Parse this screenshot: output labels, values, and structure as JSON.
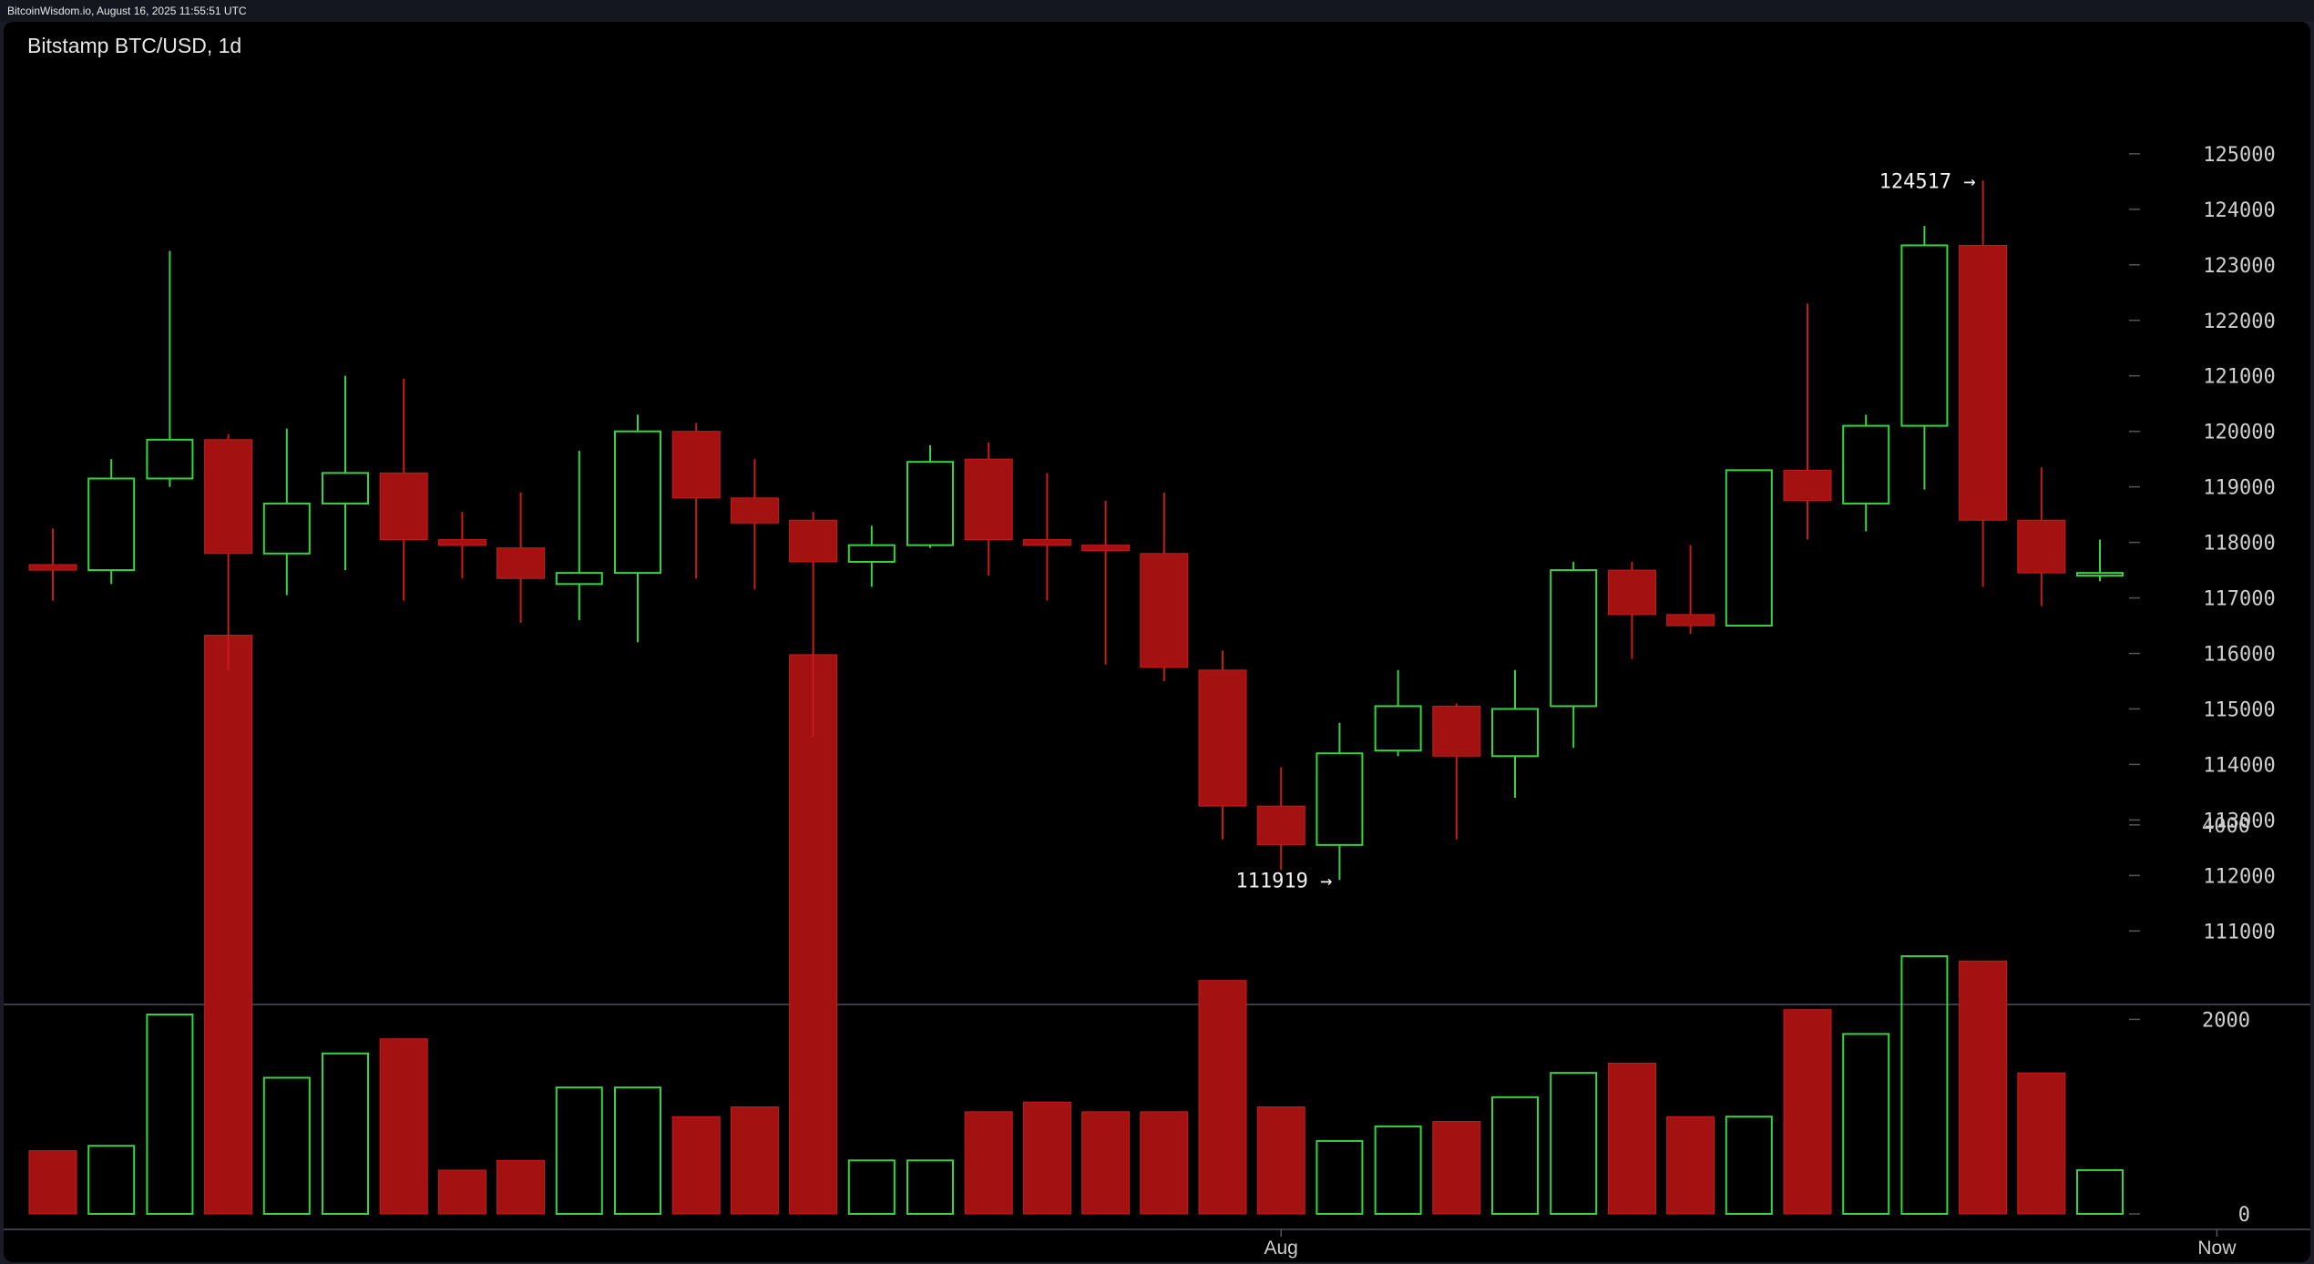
{
  "header": {
    "status_text": "BitcoinWisdom.io, August 16, 2025 11:55:51 UTC"
  },
  "chart": {
    "title": "Bitstamp BTC/USD, 1d"
  },
  "colors": {
    "up": "#36d43e",
    "down": "#a31111",
    "down_wick": "#c71c1c",
    "background": "#000000",
    "axis_text": "#cfcfcf",
    "tick": "#555555",
    "separator": "#3a3d47"
  },
  "chart_data": {
    "type": "candlestick",
    "title": "Bitstamp BTC/USD, 1d",
    "price_axis": {
      "ylim": [
        110300,
        125900
      ],
      "ticks": [
        111000,
        112000,
        113000,
        114000,
        115000,
        116000,
        117000,
        118000,
        119000,
        120000,
        121000,
        122000,
        123000,
        124000,
        125000
      ]
    },
    "volume_axis": {
      "ylim": [
        0,
        6000
      ],
      "ticks": [
        0,
        2000,
        4000
      ]
    },
    "x_labels": [
      {
        "index": 21,
        "label": "Aug"
      },
      {
        "index": 37,
        "label": "Now"
      }
    ],
    "annotations": [
      {
        "text": "124517 →",
        "index": 33,
        "value": 124517,
        "anchor": "high"
      },
      {
        "text": "111919 →",
        "index": 22,
        "value": 111919,
        "anchor": "low"
      }
    ],
    "candles": [
      {
        "o": 117600,
        "h": 118250,
        "l": 116950,
        "c": 117500,
        "v": 650
      },
      {
        "o": 117500,
        "h": 119500,
        "l": 117250,
        "c": 119150,
        "v": 700
      },
      {
        "o": 119150,
        "h": 123250,
        "l": 119000,
        "c": 119850,
        "v": 2050
      },
      {
        "o": 119850,
        "h": 119950,
        "l": 115700,
        "c": 117800,
        "v": 5950
      },
      {
        "o": 117800,
        "h": 120050,
        "l": 117050,
        "c": 118700,
        "v": 1400
      },
      {
        "o": 118700,
        "h": 121000,
        "l": 117500,
        "c": 119250,
        "v": 1650
      },
      {
        "o": 119250,
        "h": 120950,
        "l": 116950,
        "c": 118050,
        "v": 1800
      },
      {
        "o": 118050,
        "h": 118550,
        "l": 117350,
        "c": 117950,
        "v": 450
      },
      {
        "o": 117900,
        "h": 118900,
        "l": 116550,
        "c": 117350,
        "v": 550
      },
      {
        "o": 117250,
        "h": 119650,
        "l": 116600,
        "c": 117450,
        "v": 1300
      },
      {
        "o": 117450,
        "h": 120300,
        "l": 116200,
        "c": 120000,
        "v": 1300
      },
      {
        "o": 120000,
        "h": 120150,
        "l": 117350,
        "c": 118800,
        "v": 1000
      },
      {
        "o": 118800,
        "h": 119500,
        "l": 117150,
        "c": 118350,
        "v": 1100
      },
      {
        "o": 118400,
        "h": 118550,
        "l": 114500,
        "c": 117650,
        "v": 5750
      },
      {
        "o": 117650,
        "h": 118300,
        "l": 117200,
        "c": 117950,
        "v": 550
      },
      {
        "o": 117950,
        "h": 119750,
        "l": 117900,
        "c": 119450,
        "v": 550
      },
      {
        "o": 119500,
        "h": 119800,
        "l": 117400,
        "c": 118050,
        "v": 1050
      },
      {
        "o": 118050,
        "h": 119250,
        "l": 116950,
        "c": 117950,
        "v": 1150
      },
      {
        "o": 117950,
        "h": 118750,
        "l": 115800,
        "c": 117850,
        "v": 1050
      },
      {
        "o": 117800,
        "h": 118900,
        "l": 115500,
        "c": 115750,
        "v": 1050
      },
      {
        "o": 115700,
        "h": 116050,
        "l": 112650,
        "c": 113250,
        "v": 2400
      },
      {
        "o": 113250,
        "h": 113950,
        "l": 112100,
        "c": 112550,
        "v": 1100
      },
      {
        "o": 112550,
        "h": 114750,
        "l": 111919,
        "c": 114200,
        "v": 750
      },
      {
        "o": 114250,
        "h": 115700,
        "l": 114150,
        "c": 115050,
        "v": 900
      },
      {
        "o": 115050,
        "h": 115100,
        "l": 112650,
        "c": 114150,
        "v": 950
      },
      {
        "o": 114150,
        "h": 115700,
        "l": 113400,
        "c": 115000,
        "v": 1200
      },
      {
        "o": 115050,
        "h": 117650,
        "l": 114300,
        "c": 117500,
        "v": 1450
      },
      {
        "o": 117500,
        "h": 117650,
        "l": 115900,
        "c": 116700,
        "v": 1550
      },
      {
        "o": 116700,
        "h": 117950,
        "l": 116350,
        "c": 116500,
        "v": 1000
      },
      {
        "o": 116500,
        "h": 119300,
        "l": 116500,
        "c": 119300,
        "v": 1000
      },
      {
        "o": 119300,
        "h": 122300,
        "l": 118050,
        "c": 118750,
        "v": 2100
      },
      {
        "o": 118700,
        "h": 120300,
        "l": 118200,
        "c": 120100,
        "v": 1850
      },
      {
        "o": 120100,
        "h": 123700,
        "l": 118950,
        "c": 123350,
        "v": 2650
      },
      {
        "o": 123350,
        "h": 124517,
        "l": 117200,
        "c": 118400,
        "v": 2600
      },
      {
        "o": 118400,
        "h": 119350,
        "l": 116850,
        "c": 117450,
        "v": 1450
      },
      {
        "o": 117450,
        "h": 118050,
        "l": 117300,
        "c": 117450,
        "v": 450
      }
    ]
  }
}
